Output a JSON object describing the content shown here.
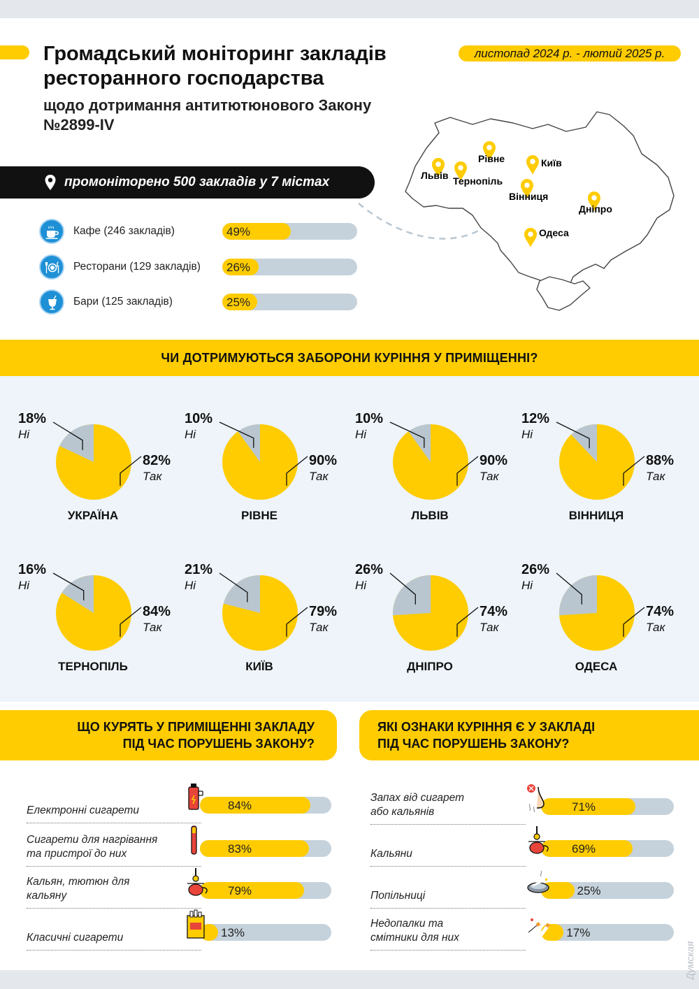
{
  "header": {
    "title": "Громадський моніторинг закладів ресторанного господарства",
    "subtitle": "щодо дотримання антитютюнового Закону №2899-IV",
    "date_range": "листопад 2024 р. - лютий 2025 р.",
    "monitored": "промоніторено 500 закладів у 7 містах"
  },
  "venues": [
    {
      "label": "Кафе (246 закладів)",
      "pct_label": "49%",
      "value": 49,
      "icon": "coffee-cup-icon"
    },
    {
      "label": "Ресторани (129 закладів)",
      "pct_label": "26%",
      "value": 26,
      "icon": "plate-cutlery-icon"
    },
    {
      "label": "Бари (125 закладів)",
      "pct_label": "25%",
      "value": 25,
      "icon": "cocktail-glass-icon"
    }
  ],
  "map": {
    "cities": [
      "Львів",
      "Тернопіль",
      "Рівне",
      "Київ",
      "Вінниця",
      "Дніпро",
      "Одеса"
    ]
  },
  "section_indoor": {
    "title": "ЧИ ДОТРИМУЮТЬСЯ ЗАБОРОНИ КУРІННЯ У ПРИМІЩЕННІ?"
  },
  "section_what": {
    "title_line1": "ЩО КУРЯТЬ У ПРИМІЩЕННІ ЗАКЛАДУ",
    "title_line2": "ПІД ЧАС ПОРУШЕНЬ ЗАКОНУ?"
  },
  "section_signs": {
    "title_line1": "ЯКІ ОЗНАКИ КУРІННЯ Є У ЗАКЛАДІ",
    "title_line2": "ПІД ЧАС ПОРУШЕНЬ ЗАКОНУ?"
  },
  "watermark": "Думская",
  "colors": {
    "yes": "#fecc00",
    "no": "#b9c6d0",
    "track": "#c6d2db",
    "icon_blue": "#1e90d6"
  },
  "chart_data": [
    {
      "type": "pie",
      "title": "ЧИ ДОТРИМУЮТЬСЯ ЗАБОРОНИ КУРІННЯ У ПРИМІЩЕННІ?",
      "slice_labels": {
        "yes": "Так",
        "no": "Ні"
      },
      "pies": [
        {
          "name": "УКРАЇНА",
          "yes": 82,
          "no": 18,
          "yes_label": "82%",
          "no_label": "18%"
        },
        {
          "name": "РІВНЕ",
          "yes": 90,
          "no": 10,
          "yes_label": "90%",
          "no_label": "10%"
        },
        {
          "name": "ЛЬВІВ",
          "yes": 90,
          "no": 10,
          "yes_label": "90%",
          "no_label": "10%"
        },
        {
          "name": "ВІННИЦЯ",
          "yes": 88,
          "no": 12,
          "yes_label": "88%",
          "no_label": "12%"
        },
        {
          "name": "ТЕРНОПІЛЬ",
          "yes": 84,
          "no": 16,
          "yes_label": "84%",
          "no_label": "16%"
        },
        {
          "name": "КИЇВ",
          "yes": 79,
          "no": 21,
          "yes_label": "79%",
          "no_label": "21%"
        },
        {
          "name": "ДНІПРО",
          "yes": 74,
          "no": 26,
          "yes_label": "74%",
          "no_label": "26%"
        },
        {
          "name": "ОДЕСА",
          "yes": 74,
          "no": 26,
          "yes_label": "74%",
          "no_label": "26%"
        }
      ]
    },
    {
      "type": "bar",
      "title": "ЩО КУРЯТЬ У ПРИМІЩЕННІ ЗАКЛАДУ ПІД ЧАС ПОРУШЕНЬ ЗАКОНУ?",
      "orientation": "horizontal",
      "xlim": [
        0,
        100
      ],
      "items": [
        {
          "label_lines": [
            "Електронні сигарети"
          ],
          "value": 84,
          "value_label": "84%",
          "icon": "e-cigarette-icon"
        },
        {
          "label_lines": [
            "Сигарети для нагрівання",
            "та пристрої до них"
          ],
          "value": 83,
          "value_label": "83%",
          "icon": "heated-tobacco-icon"
        },
        {
          "label_lines": [
            "Кальян, тютюн для",
            "кальяну"
          ],
          "value": 79,
          "value_label": "79%",
          "icon": "hookah-icon"
        },
        {
          "label_lines": [
            "Класичні сигарети"
          ],
          "value": 13,
          "value_label": "13%",
          "icon": "cigarette-pack-icon"
        }
      ]
    },
    {
      "type": "bar",
      "title": "ЯКІ ОЗНАКИ КУРІННЯ Є У ЗАКЛАДІ ПІД ЧАС ПОРУШЕНЬ ЗАКОНУ?",
      "orientation": "horizontal",
      "xlim": [
        0,
        100
      ],
      "items": [
        {
          "label_lines": [
            "Запах від сигарет",
            "або кальянів"
          ],
          "value": 71,
          "value_label": "71%",
          "icon": "nose-smell-icon"
        },
        {
          "label_lines": [
            "Кальяни"
          ],
          "value": 69,
          "value_label": "69%",
          "icon": "hookah-icon"
        },
        {
          "label_lines": [
            "Попільниці"
          ],
          "value": 25,
          "value_label": "25%",
          "icon": "ashtray-icon"
        },
        {
          "label_lines": [
            "Недопалки та",
            "смітники для них"
          ],
          "value": 17,
          "value_label": "17%",
          "icon": "cigarette-butts-icon"
        }
      ]
    }
  ]
}
